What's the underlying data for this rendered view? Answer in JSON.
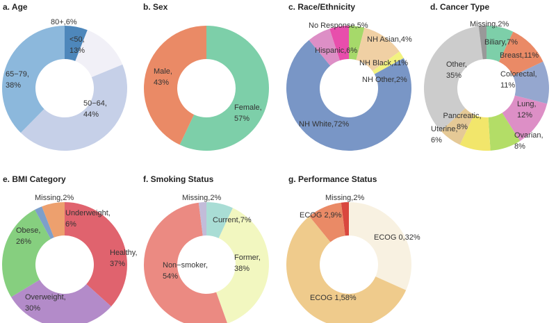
{
  "chart_data": [
    {
      "type": "pie",
      "title": "a. Age",
      "slices": [
        {
          "label": "80+,6%",
          "value": 6,
          "color": "#4e87bb"
        },
        {
          "label": "<50,\n13%",
          "value": 13,
          "color": "#f1f0f7"
        },
        {
          "label": "50−64,\n44%",
          "value": 44,
          "color": "#c6d0e8"
        },
        {
          "label": "65−79,\n38%",
          "value": 38,
          "color": "#8cb8dc"
        }
      ]
    },
    {
      "type": "pie",
      "title": "b. Sex",
      "slices": [
        {
          "label": "Female,\n57%",
          "value": 57,
          "color": "#7dcfa9"
        },
        {
          "label": "Male,\n43%",
          "value": 43,
          "color": "#ea8a66"
        }
      ]
    },
    {
      "type": "pie",
      "title": "c. Race/Ethnicity",
      "slices": [
        {
          "label": "NH Asian,4%",
          "value": 4,
          "color": "#a6d96a"
        },
        {
          "label": "NH Black,11%",
          "value": 11,
          "color": "#f0d0a4"
        },
        {
          "label": "NH Other,2%",
          "value": 2,
          "color": "#f2f280"
        },
        {
          "label": "NH White,72%",
          "value": 72,
          "color": "#7996c6"
        },
        {
          "label": "Hispanic,6%",
          "value": 6,
          "color": "#dd8fc6"
        },
        {
          "label": "No Response,5%",
          "value": 5,
          "color": "#e84eac"
        }
      ]
    },
    {
      "type": "pie",
      "title": "d. Cancer Type",
      "slices": [
        {
          "label": "Biliary,7%",
          "value": 7,
          "color": "#7dcfa9"
        },
        {
          "label": "Breast,11%",
          "value": 11,
          "color": "#ea8a66"
        },
        {
          "label": "Colorectal,\n11%",
          "value": 11,
          "color": "#95a7cf"
        },
        {
          "label": "Lung,\n12%",
          "value": 12,
          "color": "#dd8fc6"
        },
        {
          "label": "Ovarian,\n8%",
          "value": 8,
          "color": "#b3dd67"
        },
        {
          "label": "Pancreatic,\n8%",
          "value": 8,
          "color": "#f2e66b"
        },
        {
          "label": "Uterine,\n6%",
          "value": 6,
          "color": "#e5c996"
        },
        {
          "label": "Other,\n35%",
          "value": 35,
          "color": "#cccccc"
        },
        {
          "label": "Missing,2%",
          "value": 2,
          "color": "#999999"
        }
      ]
    },
    {
      "type": "pie",
      "title": "e. BMI Category",
      "slices": [
        {
          "label": "Healthy,\n37%",
          "value": 37,
          "color": "#e0636e"
        },
        {
          "label": "Overweight,\n30%",
          "value": 30,
          "color": "#b38bc9"
        },
        {
          "label": "Obese,\n26%",
          "value": 26,
          "color": "#86cf7f"
        },
        {
          "label": "Missing,2%",
          "value": 2,
          "color": "#7d9fcb"
        },
        {
          "label": "Underweight,\n6%",
          "value": 6,
          "color": "#eda06e"
        }
      ]
    },
    {
      "type": "pie",
      "title": "f. Smoking Status",
      "slices": [
        {
          "label": "Current,7%",
          "value": 7,
          "color": "#a9ddd5"
        },
        {
          "label": "Former,\n38%",
          "value": 38,
          "color": "#f2f7c0"
        },
        {
          "label": "Non−smoker,\n54%",
          "value": 54,
          "color": "#eb8a82"
        },
        {
          "label": "Missing,2%",
          "value": 2,
          "color": "#c2bcd9"
        }
      ]
    },
    {
      "type": "pie",
      "title": "g. Performance Status",
      "slices": [
        {
          "label": "ECOG 0,32%",
          "value": 32,
          "color": "#f8f1e1"
        },
        {
          "label": "ECOG 1,58%",
          "value": 58,
          "color": "#efcb8c"
        },
        {
          "label": "ECOG 2,9%",
          "value": 9,
          "color": "#ea8a66"
        },
        {
          "label": "Missing,2%",
          "value": 2,
          "color": "#d9473e"
        }
      ]
    }
  ]
}
